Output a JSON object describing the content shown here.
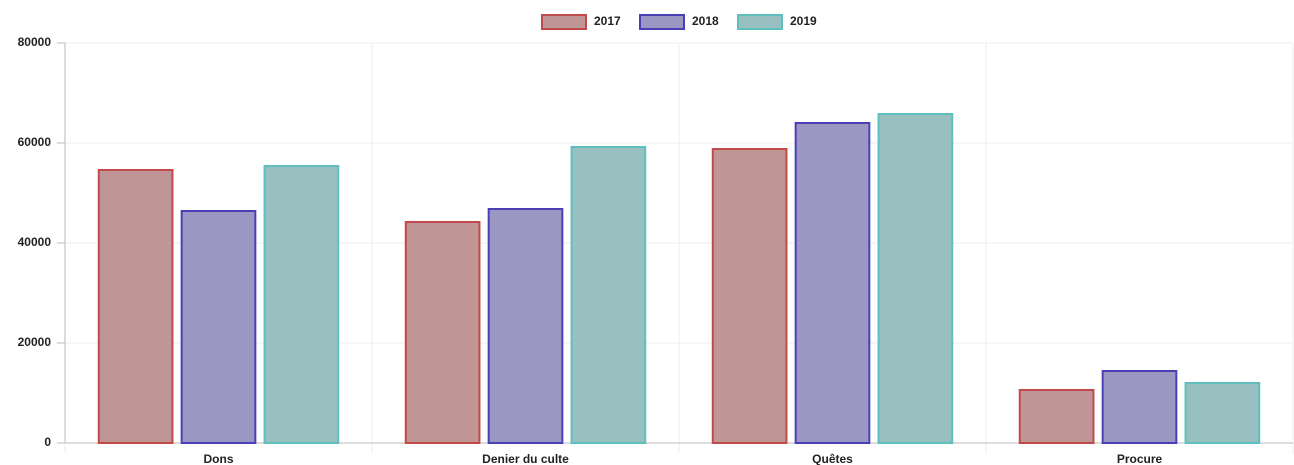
{
  "chart_data": {
    "type": "bar",
    "categories": [
      "Dons",
      "Denier du culte",
      "Quêtes",
      "Procure"
    ],
    "series": [
      {
        "name": "2017",
        "color": "#c09595",
        "border": "#c04a4a",
        "values": [
          54600,
          44200,
          58800,
          10600
        ]
      },
      {
        "name": "2018",
        "color": "#9a98c2",
        "border": "#4b3fb8",
        "values": [
          46400,
          46800,
          64000,
          14400
        ]
      },
      {
        "name": "2019",
        "color": "#99c0c0",
        "border": "#5fbfbf",
        "values": [
          55400,
          59200,
          65800,
          12000
        ]
      }
    ],
    "ylim": [
      0,
      80000
    ],
    "yticks": [
      0,
      20000,
      40000,
      60000,
      80000
    ],
    "grid": true,
    "legend": "top"
  }
}
